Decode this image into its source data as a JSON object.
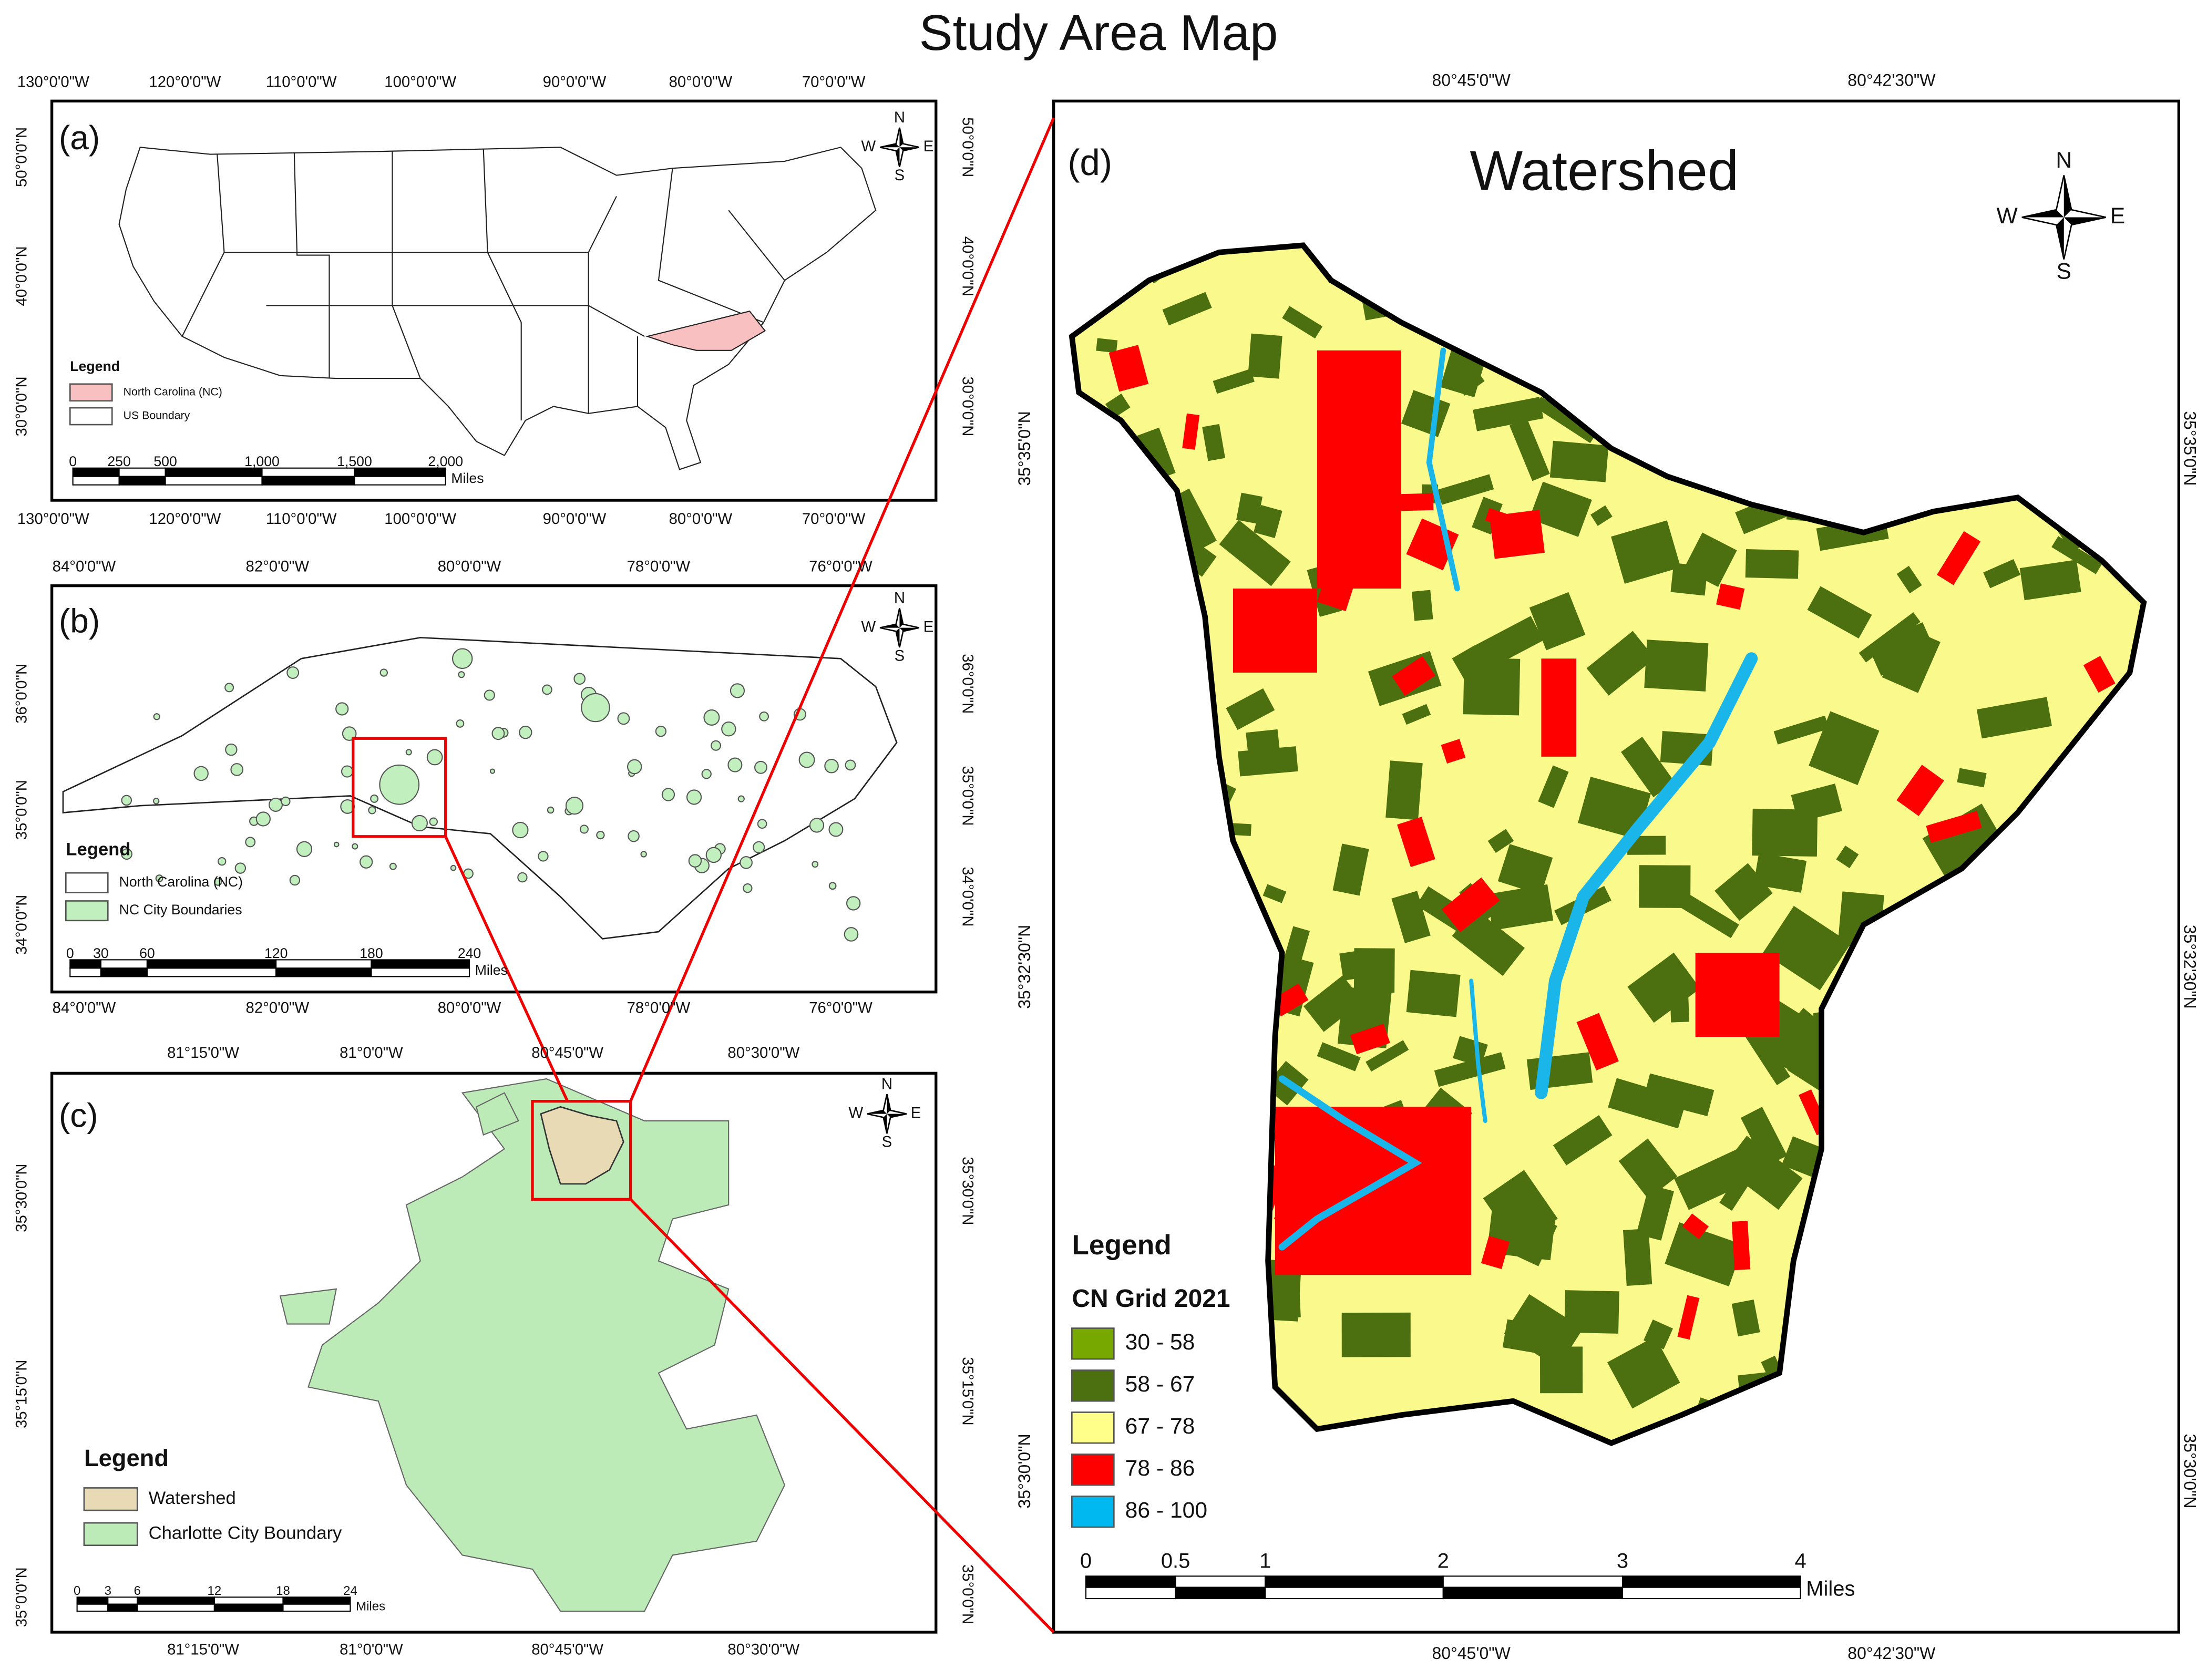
{
  "title": "Study Area Map",
  "panels": [
    {
      "label": "(a)",
      "lon_ticks": [
        "130°0'0\"W",
        "120°0'0\"W",
        "110°0'0\"W",
        "100°0'0\"W",
        "90°0'0\"W",
        "80°0'0\"W",
        "70°0'0\"W"
      ],
      "lat_ticks": [
        "50°0'0\"N",
        "40°0'0\"N",
        "30°0'0\"N"
      ],
      "legend": {
        "title": "Legend",
        "items": [
          {
            "label": "North Carolina (NC)",
            "color": "#f8c0c0"
          },
          {
            "label": "US Boundary",
            "color": "#ffffff"
          }
        ]
      },
      "scale_bar": {
        "ticks": [
          "0",
          "250",
          "500",
          "1,000",
          "1,500",
          "2,000"
        ],
        "unit": "Miles"
      },
      "compass": {
        "n": "N",
        "w": "W",
        "e": "E",
        "s": "S"
      }
    },
    {
      "label": "(b)",
      "lon_ticks": [
        "84°0'0\"W",
        "82°0'0\"W",
        "80°0'0\"W",
        "78°0'0\"W",
        "76°0'0\"W"
      ],
      "lat_ticks": [
        "36°0'0\"N",
        "35°0'0\"N",
        "34°0'0\"N"
      ],
      "legend": {
        "title": "Legend",
        "items": [
          {
            "label": "North Carolina (NC)",
            "color": "#ffffff"
          },
          {
            "label": "NC City Boundaries",
            "color": "#c2efbe"
          }
        ]
      },
      "scale_bar": {
        "ticks": [
          "0",
          "30",
          "60",
          "120",
          "180",
          "240"
        ],
        "unit": "Miles"
      },
      "compass": {
        "n": "N",
        "w": "W",
        "e": "E",
        "s": "S"
      }
    },
    {
      "label": "(c)",
      "lon_ticks": [
        "81°15'0\"W",
        "81°0'0\"W",
        "80°45'0\"W",
        "80°30'0\"W"
      ],
      "lat_ticks": [
        "35°30'0\"N",
        "35°15'0\"N",
        "35°0'0\"N"
      ],
      "legend": {
        "title": "Legend",
        "items": [
          {
            "label": "Watershed",
            "color": "#e9dab6"
          },
          {
            "label": "Charlotte City Boundary",
            "color": "#bcebb8"
          }
        ]
      },
      "scale_bar": {
        "ticks": [
          "0",
          "3",
          "6",
          "12",
          "18",
          "24"
        ],
        "unit": "Miles"
      },
      "compass": {
        "n": "N",
        "w": "W",
        "e": "E",
        "s": "S"
      }
    },
    {
      "label": "(d)",
      "heading": "Watershed",
      "lon_ticks": [
        "80°45'0\"W",
        "80°42'30\"W"
      ],
      "lat_ticks": [
        "35°35'0\"N",
        "35°32'30\"N",
        "35°30'0\"N"
      ],
      "legend": {
        "title": "Legend",
        "subtitle": "CN Grid 2021",
        "items": [
          {
            "label": "30 - 58",
            "color": "#76a800"
          },
          {
            "label": "58 - 67",
            "color": "#4c7010"
          },
          {
            "label": "67 - 78",
            "color": "#ffff8a"
          },
          {
            "label": "78 - 86",
            "color": "#ff0000"
          },
          {
            "label": "86 - 100",
            "color": "#00b8f0"
          }
        ]
      },
      "scale_bar": {
        "ticks": [
          "0",
          "0.5",
          "1",
          "2",
          "3",
          "4"
        ],
        "unit": "Miles"
      },
      "compass": {
        "n": "N",
        "w": "W",
        "e": "E",
        "s": "S"
      }
    }
  ]
}
